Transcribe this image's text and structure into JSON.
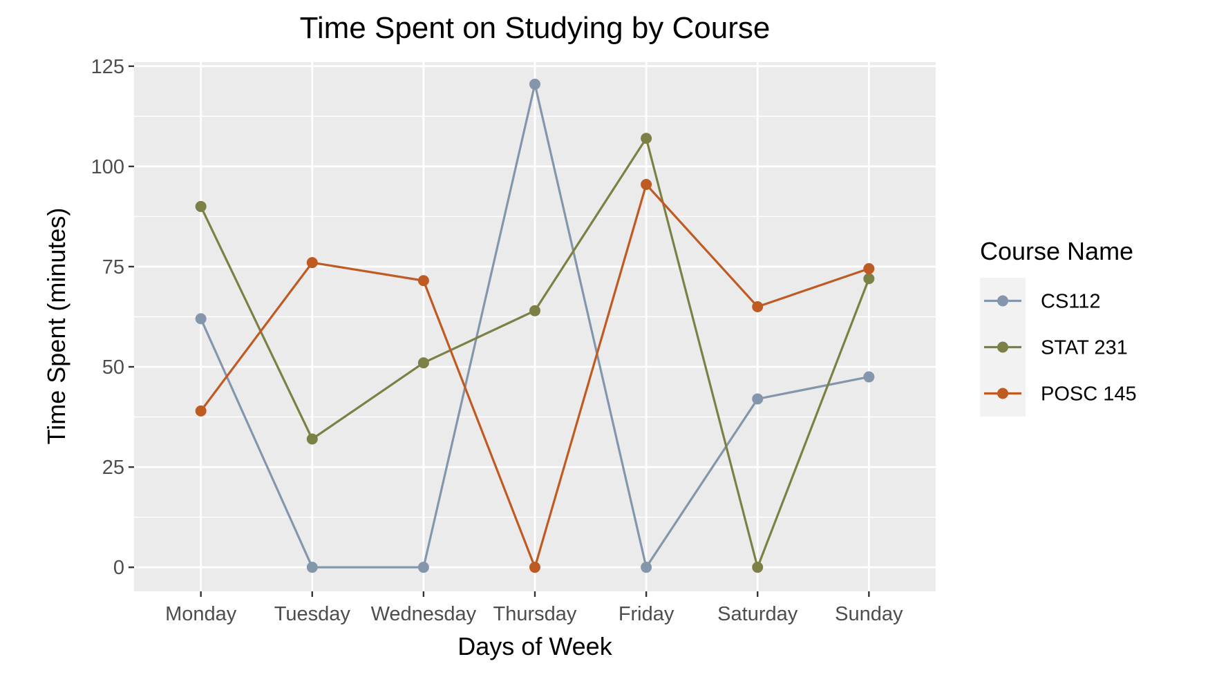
{
  "chart_data": {
    "type": "line",
    "title": "Time Spent on Studying by Course",
    "xlabel": "Days of Week",
    "ylabel": "Time Spent (minutes)",
    "categories": [
      "Monday",
      "Tuesday",
      "Wednesday",
      "Thursday",
      "Friday",
      "Saturday",
      "Sunday"
    ],
    "ylim": [
      -6,
      126
    ],
    "yticks": [
      "0",
      "25",
      "50",
      "75",
      "100",
      "125"
    ],
    "grid": true,
    "legend": {
      "title": "Course Name",
      "position": "right"
    },
    "series": [
      {
        "name": "CS112",
        "color": "#8396ab",
        "values": [
          62,
          0,
          0,
          120.5,
          0,
          42,
          47.5
        ]
      },
      {
        "name": "STAT 231",
        "color": "#7d8045",
        "values": [
          90,
          32,
          51,
          64,
          107,
          0,
          72
        ]
      },
      {
        "name": "POSC 145",
        "color": "#c05a23",
        "values": [
          39,
          76,
          71.5,
          0,
          95.5,
          65,
          74.5
        ]
      }
    ]
  }
}
